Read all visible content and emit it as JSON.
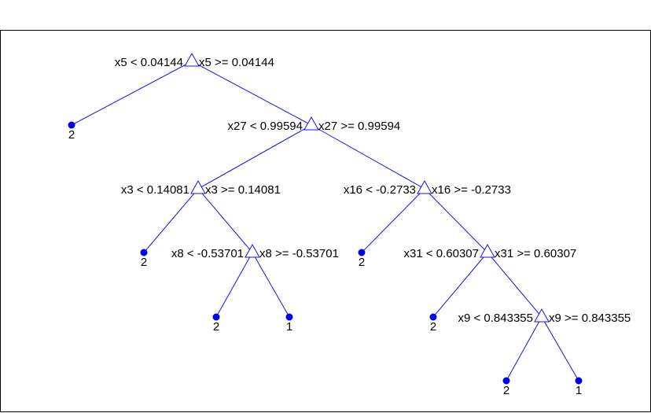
{
  "tree": {
    "nodes": [
      {
        "id": "n1",
        "type": "split",
        "left_rule": "x5 < 0.04144",
        "right_rule": "x5 >= 0.04144"
      },
      {
        "id": "n2",
        "type": "leaf",
        "class": "2"
      },
      {
        "id": "n3",
        "type": "split",
        "left_rule": "x27 < 0.99594",
        "right_rule": "x27 >= 0.99594"
      },
      {
        "id": "n4",
        "type": "split",
        "left_rule": "x3 < 0.14081",
        "right_rule": "x3 >= 0.14081"
      },
      {
        "id": "n5",
        "type": "split",
        "left_rule": "x16 < -0.2733",
        "right_rule": "x16 >= -0.2733"
      },
      {
        "id": "n6",
        "type": "leaf",
        "class": "2"
      },
      {
        "id": "n7",
        "type": "split",
        "left_rule": "x8 < -0.53701",
        "right_rule": "x8 >= -0.53701"
      },
      {
        "id": "n8",
        "type": "leaf",
        "class": "2"
      },
      {
        "id": "n9",
        "type": "split",
        "left_rule": "x31 < 0.60307",
        "right_rule": "x31 >= 0.60307"
      },
      {
        "id": "n10",
        "type": "leaf",
        "class": "2"
      },
      {
        "id": "n11",
        "type": "leaf",
        "class": "1"
      },
      {
        "id": "n12",
        "type": "leaf",
        "class": "2"
      },
      {
        "id": "n13",
        "type": "split",
        "left_rule": "x9 < 0.843355",
        "right_rule": "x9 >= 0.843355"
      },
      {
        "id": "n14",
        "type": "leaf",
        "class": "2"
      },
      {
        "id": "n15",
        "type": "leaf",
        "class": "1"
      }
    ],
    "edges": [
      [
        "n1",
        "n2"
      ],
      [
        "n1",
        "n3"
      ],
      [
        "n3",
        "n4"
      ],
      [
        "n3",
        "n5"
      ],
      [
        "n4",
        "n6"
      ],
      [
        "n4",
        "n7"
      ],
      [
        "n5",
        "n8"
      ],
      [
        "n5",
        "n9"
      ],
      [
        "n7",
        "n10"
      ],
      [
        "n7",
        "n11"
      ],
      [
        "n9",
        "n12"
      ],
      [
        "n9",
        "n13"
      ],
      [
        "n13",
        "n14"
      ],
      [
        "n13",
        "n15"
      ]
    ],
    "colors": {
      "edge": "#1414e6",
      "leaf": "#0000ee",
      "text": "#000000"
    }
  }
}
